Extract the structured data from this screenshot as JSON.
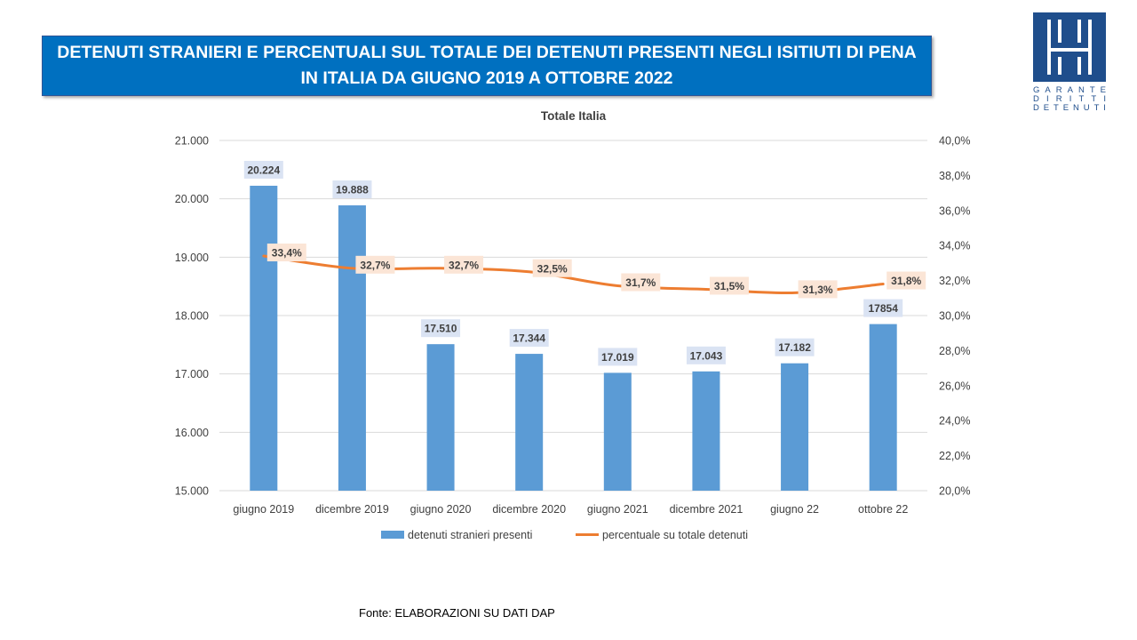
{
  "header": {
    "title_line1": "DETENUTI STRANIERI E PERCENTUALI SUL TOTALE DEI DETENUTI PRESENTI NEGLI ISITIUTI DI PENA",
    "title_line2": "IN ITALIA DA GIUGNO 2019 A OTTOBRE 2022"
  },
  "logo": {
    "words": [
      "GARANTE",
      "DIRITTI",
      "DETENUTI"
    ],
    "color": "#1f4e8c"
  },
  "source": {
    "label": "Fonte:",
    "text": "ELABORAZIONI SU DATI DAP"
  },
  "chart_data": {
    "type": "bar",
    "title": "Totale Italia",
    "categories": [
      "giugno 2019",
      "dicembre 2019",
      "giugno 2020",
      "dicembre 2020",
      "giugno 2021",
      "dicembre 2021",
      "giugno 22",
      "ottobre 22"
    ],
    "series": [
      {
        "name": "detenuti stranieri presenti",
        "type": "bar",
        "axis": "left",
        "color": "#5b9bd5",
        "values": [
          20224,
          19888,
          17510,
          17344,
          17019,
          17043,
          17182,
          17854
        ],
        "labels": [
          "20.224",
          "19.888",
          "17.510",
          "17.344",
          "17.019",
          "17.043",
          "17.182",
          "17854"
        ]
      },
      {
        "name": "percentuale su totale detenuti",
        "type": "line",
        "axis": "right",
        "color": "#ed7d31",
        "values": [
          33.4,
          32.7,
          32.7,
          32.5,
          31.7,
          31.5,
          31.3,
          31.8
        ],
        "labels": [
          "33,4%",
          "32,7%",
          "32,7%",
          "32,5%",
          "31,7%",
          "31,5%",
          "31,3%",
          "31,8%"
        ]
      }
    ],
    "y_left": {
      "min": 15000,
      "max": 21000,
      "ticks": [
        15000,
        16000,
        17000,
        18000,
        19000,
        20000,
        21000
      ],
      "tick_labels": [
        "15.000",
        "16.000",
        "17.000",
        "18.000",
        "19.000",
        "20.000",
        "21.000"
      ]
    },
    "y_right": {
      "min": 20,
      "max": 40,
      "ticks": [
        20,
        22,
        24,
        26,
        28,
        30,
        32,
        34,
        36,
        38,
        40
      ],
      "tick_labels": [
        "20,0%",
        "22,0%",
        "24,0%",
        "26,0%",
        "28,0%",
        "30,0%",
        "32,0%",
        "34,0%",
        "36,0%",
        "38,0%",
        "40,0%"
      ]
    },
    "grid": true,
    "legend_position": "bottom"
  }
}
